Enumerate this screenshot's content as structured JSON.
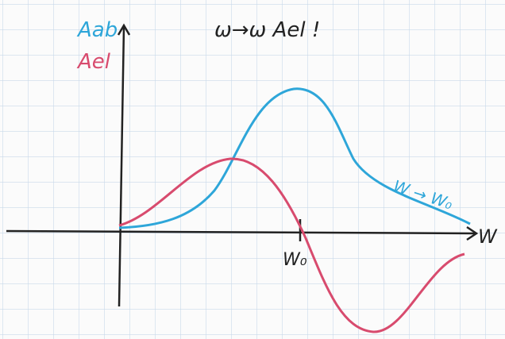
{
  "title": "ω→ω Ael !",
  "legend": [
    {
      "label": "Aab",
      "color": "#2ea6d9"
    },
    {
      "label": "Ael",
      "color": "#d84b6e"
    }
  ],
  "annotation": "W → W₀",
  "x_axis_label": "W",
  "x_mark_label": "W₀"
}
